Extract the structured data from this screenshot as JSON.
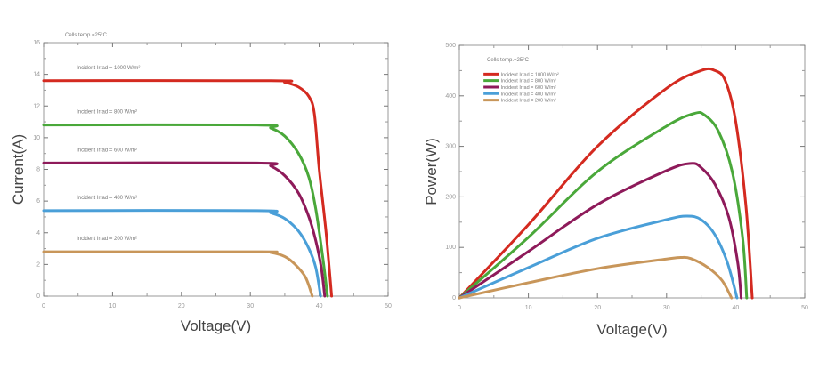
{
  "chart_data": [
    {
      "type": "line",
      "title": "",
      "annotation": "Cells temp.=25°C",
      "xlabel": "Voltage(V)",
      "ylabel": "Current(A)",
      "xlim": [
        0,
        50
      ],
      "ylim": [
        0,
        16
      ],
      "xticks": [
        0,
        10,
        20,
        30,
        40,
        50
      ],
      "yticks": [
        0,
        2,
        4,
        6,
        8,
        10,
        12,
        14,
        16
      ],
      "grid": false,
      "legend": "inline labels above each curve",
      "series": [
        {
          "name": "Incident Irrad = 1000 W/m²",
          "color": "#d42a20",
          "points": [
            [
              0,
              13.6
            ],
            [
              33,
              13.6
            ],
            [
              35,
              13.5
            ],
            [
              37,
              13.2
            ],
            [
              38.5,
              12.6
            ],
            [
              39.3,
              11.5
            ],
            [
              40,
              8
            ],
            [
              41,
              4
            ],
            [
              41.8,
              0
            ]
          ]
        },
        {
          "name": "Incident Irrad = 800 W/m²",
          "color": "#4aa83a",
          "points": [
            [
              0,
              10.8
            ],
            [
              31,
              10.8
            ],
            [
              33,
              10.6
            ],
            [
              35,
              10.1
            ],
            [
              37,
              9
            ],
            [
              38.5,
              7.5
            ],
            [
              39.5,
              5.5
            ],
            [
              40.5,
              2.5
            ],
            [
              41.2,
              0
            ]
          ]
        },
        {
          "name": "Incident Irrad = 600 W/m²",
          "color": "#8e1a5a",
          "points": [
            [
              0,
              8.4
            ],
            [
              31,
              8.4
            ],
            [
              33,
              8.2
            ],
            [
              35,
              7.6
            ],
            [
              37,
              6.5
            ],
            [
              38.5,
              5
            ],
            [
              39.5,
              3.5
            ],
            [
              40.3,
              1.8
            ],
            [
              40.8,
              0
            ]
          ]
        },
        {
          "name": "Incident Irrad = 400 W/m²",
          "color": "#4a9fd8",
          "points": [
            [
              0,
              5.4
            ],
            [
              31,
              5.4
            ],
            [
              33,
              5.25
            ],
            [
              35,
              4.9
            ],
            [
              37,
              4.1
            ],
            [
              38.5,
              3
            ],
            [
              39.5,
              1.8
            ],
            [
              40.2,
              0
            ]
          ]
        },
        {
          "name": "Incident Irrad = 200 W/m²",
          "color": "#c8965a",
          "points": [
            [
              0,
              2.8
            ],
            [
              31,
              2.8
            ],
            [
              33,
              2.75
            ],
            [
              35,
              2.5
            ],
            [
              36.5,
              2.0
            ],
            [
              38,
              1.2
            ],
            [
              39,
              0
            ]
          ]
        }
      ]
    },
    {
      "type": "line",
      "title": "",
      "annotation": "Cells temp.=25°C",
      "xlabel": "Voltage(V)",
      "ylabel": "Power(W)",
      "xlim": [
        0,
        50
      ],
      "ylim": [
        0,
        500
      ],
      "xticks": [
        0,
        10,
        20,
        30,
        40,
        50
      ],
      "yticks": [
        0,
        100,
        200,
        300,
        400,
        500
      ],
      "grid": false,
      "legend": "top-left",
      "series": [
        {
          "name": "Incident Irrad = 1000 W/m²",
          "color": "#d42a20",
          "points": [
            [
              0,
              0
            ],
            [
              10,
              145
            ],
            [
              20,
              300
            ],
            [
              30,
              415
            ],
            [
              35,
              450
            ],
            [
              37,
              450
            ],
            [
              38.5,
              430
            ],
            [
              40,
              350
            ],
            [
              41.5,
              180
            ],
            [
              42.4,
              0
            ]
          ]
        },
        {
          "name": "Incident Irrad = 800 W/m²",
          "color": "#4aa83a",
          "points": [
            [
              0,
              0
            ],
            [
              10,
              120
            ],
            [
              20,
              250
            ],
            [
              30,
              340
            ],
            [
              34,
              365
            ],
            [
              35.5,
              362
            ],
            [
              37.5,
              330
            ],
            [
              39.5,
              250
            ],
            [
              41,
              120
            ],
            [
              41.6,
              0
            ]
          ]
        },
        {
          "name": "Incident Irrad = 600 W/m²",
          "color": "#8e1a5a",
          "points": [
            [
              0,
              0
            ],
            [
              10,
              92
            ],
            [
              20,
              185
            ],
            [
              30,
              252
            ],
            [
              33.5,
              266
            ],
            [
              35,
              258
            ],
            [
              37,
              225
            ],
            [
              39,
              160
            ],
            [
              40.3,
              70
            ],
            [
              40.8,
              0
            ]
          ]
        },
        {
          "name": "Incident Irrad = 400 W/m²",
          "color": "#4a9fd8",
          "points": [
            [
              0,
              0
            ],
            [
              10,
              60
            ],
            [
              20,
              118
            ],
            [
              30,
              155
            ],
            [
              33,
              162
            ],
            [
              35,
              155
            ],
            [
              37,
              125
            ],
            [
              38.8,
              70
            ],
            [
              40.2,
              0
            ]
          ]
        },
        {
          "name": "Incident Irrad = 200 W/m²",
          "color": "#c8965a",
          "points": [
            [
              0,
              0
            ],
            [
              10,
              30
            ],
            [
              20,
              58
            ],
            [
              30,
              77
            ],
            [
              32,
              80
            ],
            [
              33.5,
              78
            ],
            [
              36,
              60
            ],
            [
              38,
              35
            ],
            [
              39.4,
              0
            ]
          ]
        }
      ]
    }
  ]
}
